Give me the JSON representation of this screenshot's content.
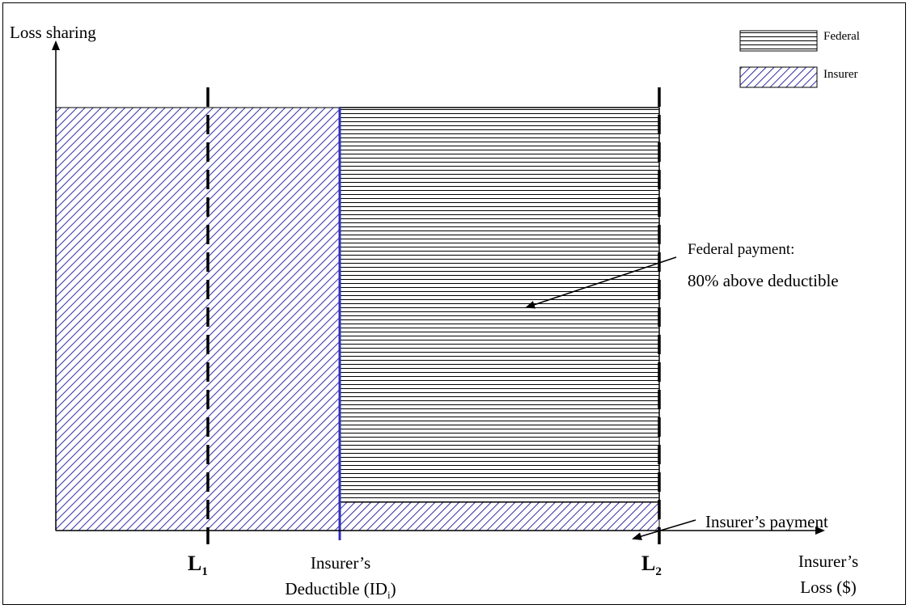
{
  "labels": {
    "y_axis": "Loss sharing",
    "x_axis_line1": "Insurer’s",
    "x_axis_line2": "Loss ($)",
    "l1_main": "L",
    "l1_sub": "1",
    "l2_main": "L",
    "l2_sub": "2",
    "deductible_line1": "Insurer’s",
    "deductible_line2_pre": "Deductible (ID",
    "deductible_line2_sub": "i",
    "deductible_line2_post": ")"
  },
  "legend": {
    "federal": "Federal",
    "insurer": "Insurer"
  },
  "annotations": {
    "federal_line1": "Federal payment:",
    "federal_line2": "80% above deductible",
    "insurer_payment": "Insurer’s payment"
  },
  "colors": {
    "insurer_hatch": "#2e2ea8",
    "federal_hatch": "#000000",
    "deductible_line": "#3030c0"
  }
}
